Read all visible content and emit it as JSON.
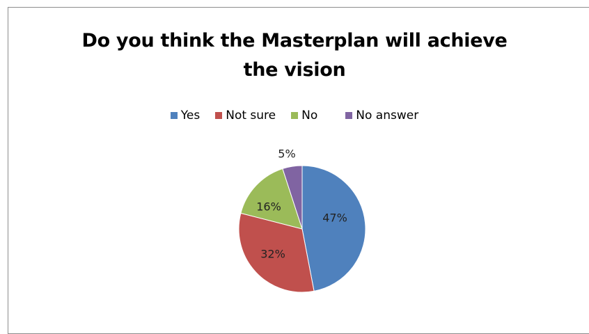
{
  "chart_data": {
    "type": "pie",
    "title": "Do you think the Masterplan will achieve the vision",
    "title_lines": [
      "Do you think the Masterplan will achieve",
      "the vision"
    ],
    "legend_position": "top",
    "slices": [
      {
        "name": "Yes",
        "value": 47,
        "label": "47%",
        "color": "#4f81bd"
      },
      {
        "name": "Not sure",
        "value": 32,
        "label": "32%",
        "color": "#c0504d"
      },
      {
        "name": "No",
        "value": 16,
        "label": "16%",
        "color": "#9bbb59"
      },
      {
        "name": "No answer",
        "value": 5,
        "label": "5%",
        "color": "#8064a2"
      }
    ]
  }
}
